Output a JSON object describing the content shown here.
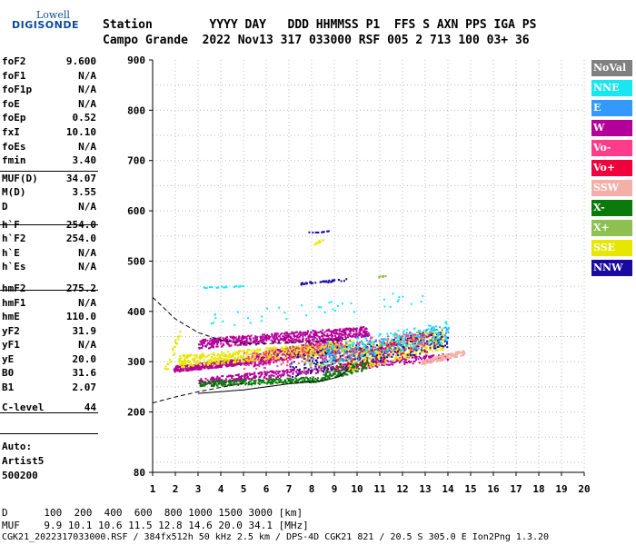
{
  "logo": {
    "line1": "Lowell",
    "line2": "DIGISONDE"
  },
  "header": {
    "line1": "Station        YYYY DAY   DDD HHMMSS P1  FFS S AXN PPS IGA PS",
    "line2": "Campo Grande  2022 Nov13 317 033000 RSF 005 2 713 100 03+ 36"
  },
  "params": [
    {
      "k": "foF2",
      "v": "9.600"
    },
    {
      "k": "foF1",
      "v": "N/A"
    },
    {
      "k": "foF1p",
      "v": "N/A"
    },
    {
      "k": "foE",
      "v": "N/A"
    },
    {
      "k": "foEp",
      "v": "0.52"
    },
    {
      "k": "fxI",
      "v": "10.10"
    },
    {
      "k": "foEs",
      "v": "N/A"
    },
    {
      "k": "fmin",
      "v": "3.40"
    },
    {
      "k": "MUF(D)",
      "v": "34.07"
    },
    {
      "k": "M(D)",
      "v": "3.55"
    },
    {
      "k": "D",
      "v": "N/A"
    },
    {
      "k": "h`F",
      "v": "254.0"
    },
    {
      "k": "h`F2",
      "v": "254.0"
    },
    {
      "k": "h`E",
      "v": "N/A"
    },
    {
      "k": "h`Es",
      "v": "N/A"
    },
    {
      "k": "hmF2",
      "v": "275.2"
    },
    {
      "k": "hmF1",
      "v": "N/A"
    },
    {
      "k": "hmE",
      "v": "110.0"
    },
    {
      "k": "yF2",
      "v": "31.9"
    },
    {
      "k": "yF1",
      "v": "N/A"
    },
    {
      "k": "yE",
      "v": "20.0"
    },
    {
      "k": "B0",
      "v": "31.6"
    },
    {
      "k": "B1",
      "v": "2.07"
    },
    {
      "k": "C-level",
      "v": "44"
    }
  ],
  "autoscale": {
    "line1": "Auto:",
    "line2": "Artist5",
    "line3": "500200"
  },
  "footer": {
    "d_line": "D      100  200  400  600  800 1000 1500 3000 [km]",
    "muf_line": "MUF    9.9 10.1 10.6 11.5 12.8 14.6 20.0 34.1 [MHz]",
    "file_line": "CGK21_2022317033000.RSF / 384fx512h 50 kHz 2.5 km / DPS-4D CGK21 821 / 20.5 S 305.0 E Ion2Png 1.3.20"
  },
  "legend": [
    {
      "label": "NoVal",
      "color": "#808080"
    },
    {
      "label": "NNE",
      "color": "#19e6f0"
    },
    {
      "label": "E",
      "color": "#3399ff"
    },
    {
      "label": "W",
      "color": "#b4009a"
    },
    {
      "label": "Vo-",
      "color": "#ff3c8c"
    },
    {
      "label": "Vo+",
      "color": "#f0003c"
    },
    {
      "label": "SSW",
      "color": "#f4b0a8"
    },
    {
      "label": "X-",
      "color": "#0a7a0a"
    },
    {
      "label": "X+",
      "color": "#8cc050"
    },
    {
      "label": "SSE",
      "color": "#e6e600"
    },
    {
      "label": "NNW",
      "color": "#1a0aa0"
    }
  ],
  "chart_data": {
    "type": "scatter",
    "xlim": [
      1,
      20
    ],
    "ylim": [
      80,
      900
    ],
    "x_ticks": [
      1,
      2,
      3,
      4,
      5,
      6,
      7,
      8,
      9,
      10,
      11,
      12,
      13,
      14,
      15,
      16,
      17,
      18,
      19,
      20
    ],
    "y_ticks": [
      80,
      200,
      300,
      400,
      500,
      600,
      700,
      800,
      900
    ],
    "grid": true,
    "clusters": [
      {
        "dir": "W",
        "x0": 1.9,
        "x1": 5.4,
        "h0": 285,
        "h1": 302,
        "count": 420,
        "spread": 6
      },
      {
        "dir": "W",
        "x0": 5.4,
        "x1": 9.3,
        "h0": 302,
        "h1": 340,
        "count": 480,
        "spread": 12
      },
      {
        "dir": "W",
        "x0": 3.0,
        "x1": 10.5,
        "h0": 335,
        "h1": 360,
        "count": 620,
        "spread": 10
      },
      {
        "dir": "W",
        "x0": 3.0,
        "x1": 14.0,
        "h0": 260,
        "h1": 310,
        "count": 520,
        "spread": 7
      },
      {
        "dir": "SSE",
        "x0": 2.1,
        "x1": 9.8,
        "h0": 300,
        "h1": 330,
        "count": 560,
        "spread": 12
      },
      {
        "dir": "SSE",
        "x0": 9.5,
        "x1": 13.8,
        "h0": 300,
        "h1": 345,
        "count": 380,
        "spread": 22
      },
      {
        "dir": "X-",
        "x0": 3.0,
        "x1": 8.5,
        "h0": 255,
        "h1": 265,
        "count": 260,
        "spread": 5
      },
      {
        "dir": "X-",
        "x0": 8.5,
        "x1": 10.5,
        "h0": 272,
        "h1": 295,
        "count": 120,
        "spread": 10
      },
      {
        "dir": "X+",
        "x0": 7.5,
        "x1": 13.8,
        "h0": 295,
        "h1": 350,
        "count": 200,
        "spread": 20
      },
      {
        "dir": "NNW",
        "x0": 7.0,
        "x1": 14.0,
        "h0": 290,
        "h1": 345,
        "count": 260,
        "spread": 22
      },
      {
        "dir": "E",
        "x0": 8.5,
        "x1": 14.0,
        "h0": 310,
        "h1": 355,
        "count": 170,
        "spread": 18
      },
      {
        "dir": "NNE",
        "x0": 8.5,
        "x1": 14.0,
        "h0": 315,
        "h1": 360,
        "count": 170,
        "spread": 20
      },
      {
        "dir": "Vo-",
        "x0": 5.0,
        "x1": 13.0,
        "h0": 300,
        "h1": 345,
        "count": 170,
        "spread": 18
      },
      {
        "dir": "Vo+",
        "x0": 9.0,
        "x1": 13.5,
        "h0": 300,
        "h1": 340,
        "count": 90,
        "spread": 18
      },
      {
        "dir": "SSW",
        "x0": 12.8,
        "x1": 14.7,
        "h0": 298,
        "h1": 318,
        "count": 140,
        "spread": 5
      },
      {
        "dir": "NNW",
        "x0": 7.5,
        "x1": 9.5,
        "h0": 455,
        "h1": 463,
        "count": 45,
        "spread": 2
      },
      {
        "dir": "NNE",
        "x0": 3.2,
        "x1": 5.0,
        "h0": 447,
        "h1": 450,
        "count": 22,
        "spread": 1
      },
      {
        "dir": "X+",
        "x0": 10.8,
        "x1": 11.3,
        "h0": 468,
        "h1": 470,
        "count": 10,
        "spread": 1
      },
      {
        "dir": "NNW",
        "x0": 7.8,
        "x1": 8.8,
        "h0": 556,
        "h1": 559,
        "count": 12,
        "spread": 1
      },
      {
        "dir": "SSE",
        "x0": 8.0,
        "x1": 8.5,
        "h0": 530,
        "h1": 545,
        "count": 10,
        "spread": 3
      },
      {
        "dir": "SSE",
        "x0": 1.5,
        "x1": 2.2,
        "h0": 275,
        "h1": 360,
        "count": 25,
        "spread": 12
      },
      {
        "dir": "NNE",
        "x0": 3.5,
        "x1": 13.0,
        "h0": 380,
        "h1": 430,
        "count": 40,
        "spread": 15
      }
    ],
    "trace_upper": [
      [
        1,
        428
      ],
      [
        2,
        385
      ],
      [
        3,
        358
      ],
      [
        4,
        343
      ],
      [
        5,
        336
      ],
      [
        6,
        336
      ],
      [
        7,
        337
      ],
      [
        8,
        340
      ],
      [
        9,
        343
      ],
      [
        9.6,
        345
      ]
    ],
    "trace_lower_dashed": [
      [
        1,
        218
      ],
      [
        2,
        230
      ],
      [
        3,
        240
      ],
      [
        4,
        249
      ],
      [
        5,
        257
      ]
    ],
    "trace_lower_solid": [
      [
        3,
        237
      ],
      [
        5,
        244
      ],
      [
        7,
        256
      ],
      [
        8.5,
        262
      ],
      [
        9.2,
        270
      ],
      [
        9.6,
        285
      ]
    ]
  }
}
